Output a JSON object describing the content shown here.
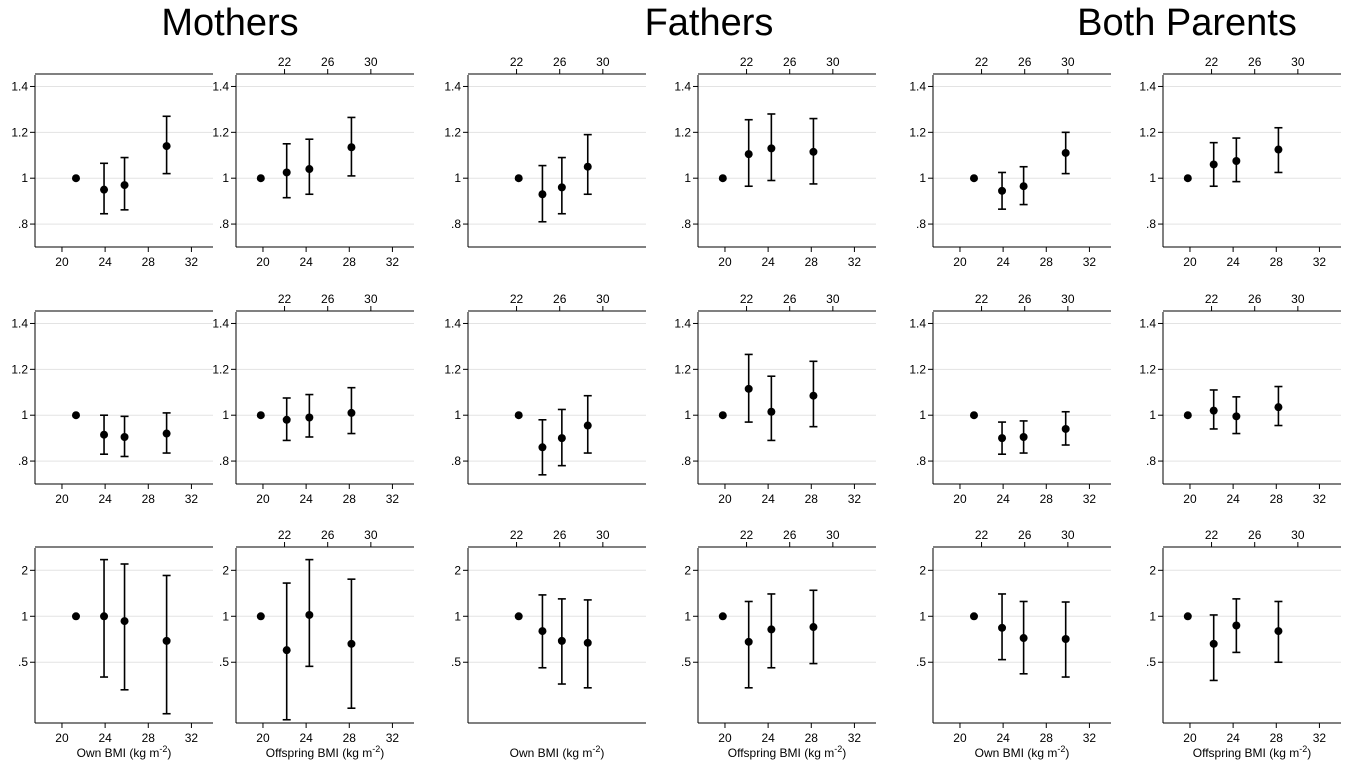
{
  "titles": [
    "Mothers",
    "Fathers",
    "Both Parents"
  ],
  "chart_data": {
    "type": "scatter",
    "description_grid": "3 groups (columns pairs) x 2 panels (own / offspring) x 3 rows; points with 95% CI error bars",
    "groups": [
      {
        "title": "Mothers",
        "panels": [
          {
            "xlabel": "Own BMI (kg m-2)",
            "bottom_ticks": [
              "20",
              "24",
              "28",
              "32"
            ],
            "top_ticks": [],
            "rows": [
              {
                "points": [
                  {
                    "x": 21.3,
                    "y": 1.0,
                    "lo": 1.0,
                    "hi": 1.0
                  },
                  {
                    "x": 23.9,
                    "y": 0.95,
                    "lo": 0.845,
                    "hi": 1.065
                  },
                  {
                    "x": 25.8,
                    "y": 0.97,
                    "lo": 0.862,
                    "hi": 1.09
                  },
                  {
                    "x": 29.7,
                    "y": 1.14,
                    "lo": 1.02,
                    "hi": 1.27
                  }
                ]
              },
              {
                "points": [
                  {
                    "x": 21.3,
                    "y": 1.0,
                    "lo": 1.0,
                    "hi": 1.0
                  },
                  {
                    "x": 23.9,
                    "y": 0.915,
                    "lo": 0.83,
                    "hi": 1.0
                  },
                  {
                    "x": 25.8,
                    "y": 0.905,
                    "lo": 0.82,
                    "hi": 0.995
                  },
                  {
                    "x": 29.7,
                    "y": 0.92,
                    "lo": 0.835,
                    "hi": 1.01
                  }
                ]
              },
              {
                "points": [
                  {
                    "x": 21.3,
                    "y": 1.0,
                    "lo": 1.0,
                    "hi": 1.0
                  },
                  {
                    "x": 23.9,
                    "y": 1.0,
                    "lo": 0.4,
                    "hi": 2.35
                  },
                  {
                    "x": 25.8,
                    "y": 0.93,
                    "lo": 0.33,
                    "hi": 2.2
                  },
                  {
                    "x": 29.7,
                    "y": 0.69,
                    "lo": 0.23,
                    "hi": 1.85
                  }
                ]
              }
            ]
          },
          {
            "xlabel": "Offspring BMI (kg m-2)",
            "bottom_ticks": [
              "20",
              "24",
              "28",
              "32"
            ],
            "top_ticks": [
              "22",
              "26",
              "30"
            ],
            "rows": [
              {
                "points": [
                  {
                    "x": 19.8,
                    "y": 1.0,
                    "lo": 1.0,
                    "hi": 1.0
                  },
                  {
                    "x": 22.2,
                    "y": 1.025,
                    "lo": 0.915,
                    "hi": 1.15
                  },
                  {
                    "x": 24.3,
                    "y": 1.04,
                    "lo": 0.93,
                    "hi": 1.17
                  },
                  {
                    "x": 28.2,
                    "y": 1.135,
                    "lo": 1.01,
                    "hi": 1.265
                  }
                ]
              },
              {
                "points": [
                  {
                    "x": 19.8,
                    "y": 1.0,
                    "lo": 1.0,
                    "hi": 1.0
                  },
                  {
                    "x": 22.2,
                    "y": 0.98,
                    "lo": 0.89,
                    "hi": 1.075
                  },
                  {
                    "x": 24.3,
                    "y": 0.99,
                    "lo": 0.905,
                    "hi": 1.09
                  },
                  {
                    "x": 28.2,
                    "y": 1.01,
                    "lo": 0.92,
                    "hi": 1.12
                  }
                ]
              },
              {
                "points": [
                  {
                    "x": 19.8,
                    "y": 1.0,
                    "lo": 1.0,
                    "hi": 1.0
                  },
                  {
                    "x": 22.2,
                    "y": 0.6,
                    "lo": 0.21,
                    "hi": 1.65
                  },
                  {
                    "x": 24.3,
                    "y": 1.02,
                    "lo": 0.47,
                    "hi": 2.35
                  },
                  {
                    "x": 28.2,
                    "y": 0.66,
                    "lo": 0.25,
                    "hi": 1.75
                  }
                ]
              }
            ]
          }
        ]
      },
      {
        "title": "Fathers",
        "panels": [
          {
            "xlabel": "Own BMI (kg m-2)",
            "bottom_ticks": [],
            "top_ticks": [
              "22",
              "26",
              "30"
            ],
            "rows": [
              {
                "points": [
                  {
                    "x": 22.2,
                    "y": 1.0,
                    "lo": 1.0,
                    "hi": 1.0
                  },
                  {
                    "x": 24.4,
                    "y": 0.93,
                    "lo": 0.81,
                    "hi": 1.055
                  },
                  {
                    "x": 26.2,
                    "y": 0.96,
                    "lo": 0.845,
                    "hi": 1.09
                  },
                  {
                    "x": 28.6,
                    "y": 1.05,
                    "lo": 0.93,
                    "hi": 1.19
                  }
                ]
              },
              {
                "points": [
                  {
                    "x": 22.2,
                    "y": 1.0,
                    "lo": 1.0,
                    "hi": 1.0
                  },
                  {
                    "x": 24.4,
                    "y": 0.86,
                    "lo": 0.74,
                    "hi": 0.98
                  },
                  {
                    "x": 26.2,
                    "y": 0.9,
                    "lo": 0.78,
                    "hi": 1.025
                  },
                  {
                    "x": 28.6,
                    "y": 0.955,
                    "lo": 0.835,
                    "hi": 1.085
                  }
                ]
              },
              {
                "points": [
                  {
                    "x": 22.2,
                    "y": 1.0,
                    "lo": 1.0,
                    "hi": 1.0
                  },
                  {
                    "x": 24.4,
                    "y": 0.8,
                    "lo": 0.46,
                    "hi": 1.38
                  },
                  {
                    "x": 26.2,
                    "y": 0.69,
                    "lo": 0.36,
                    "hi": 1.3
                  },
                  {
                    "x": 28.6,
                    "y": 0.67,
                    "lo": 0.34,
                    "hi": 1.28
                  }
                ]
              }
            ]
          },
          {
            "xlabel": "Offspring BMI (kg m-2)",
            "bottom_ticks": [
              "20",
              "24",
              "28",
              "32"
            ],
            "top_ticks": [
              "22",
              "26",
              "30"
            ],
            "rows": [
              {
                "points": [
                  {
                    "x": 19.8,
                    "y": 1.0,
                    "lo": 1.0,
                    "hi": 1.0
                  },
                  {
                    "x": 22.2,
                    "y": 1.105,
                    "lo": 0.965,
                    "hi": 1.255
                  },
                  {
                    "x": 24.3,
                    "y": 1.13,
                    "lo": 0.99,
                    "hi": 1.28
                  },
                  {
                    "x": 28.2,
                    "y": 1.115,
                    "lo": 0.975,
                    "hi": 1.26
                  }
                ]
              },
              {
                "points": [
                  {
                    "x": 19.8,
                    "y": 1.0,
                    "lo": 1.0,
                    "hi": 1.0
                  },
                  {
                    "x": 22.2,
                    "y": 1.115,
                    "lo": 0.97,
                    "hi": 1.265
                  },
                  {
                    "x": 24.3,
                    "y": 1.015,
                    "lo": 0.89,
                    "hi": 1.17
                  },
                  {
                    "x": 28.2,
                    "y": 1.085,
                    "lo": 0.95,
                    "hi": 1.235
                  }
                ]
              },
              {
                "points": [
                  {
                    "x": 19.8,
                    "y": 1.0,
                    "lo": 1.0,
                    "hi": 1.0
                  },
                  {
                    "x": 22.2,
                    "y": 0.68,
                    "lo": 0.34,
                    "hi": 1.25
                  },
                  {
                    "x": 24.3,
                    "y": 0.82,
                    "lo": 0.46,
                    "hi": 1.4
                  },
                  {
                    "x": 28.2,
                    "y": 0.85,
                    "lo": 0.49,
                    "hi": 1.48
                  }
                ]
              }
            ]
          }
        ]
      },
      {
        "title": "Both Parents",
        "panels": [
          {
            "xlabel": "Own BMI (kg m-2)",
            "bottom_ticks": [
              "20",
              "24",
              "28",
              "32"
            ],
            "top_ticks": [
              "22",
              "26",
              "30"
            ],
            "rows": [
              {
                "points": [
                  {
                    "x": 21.3,
                    "y": 1.0,
                    "lo": 1.0,
                    "hi": 1.0
                  },
                  {
                    "x": 23.9,
                    "y": 0.945,
                    "lo": 0.865,
                    "hi": 1.025
                  },
                  {
                    "x": 25.9,
                    "y": 0.965,
                    "lo": 0.885,
                    "hi": 1.05
                  },
                  {
                    "x": 29.8,
                    "y": 1.11,
                    "lo": 1.02,
                    "hi": 1.2
                  }
                ]
              },
              {
                "points": [
                  {
                    "x": 21.3,
                    "y": 1.0,
                    "lo": 1.0,
                    "hi": 1.0
                  },
                  {
                    "x": 23.9,
                    "y": 0.9,
                    "lo": 0.83,
                    "hi": 0.97
                  },
                  {
                    "x": 25.9,
                    "y": 0.905,
                    "lo": 0.835,
                    "hi": 0.975
                  },
                  {
                    "x": 29.8,
                    "y": 0.94,
                    "lo": 0.87,
                    "hi": 1.015
                  }
                ]
              },
              {
                "points": [
                  {
                    "x": 21.3,
                    "y": 1.0,
                    "lo": 1.0,
                    "hi": 1.0
                  },
                  {
                    "x": 23.9,
                    "y": 0.84,
                    "lo": 0.52,
                    "hi": 1.4
                  },
                  {
                    "x": 25.9,
                    "y": 0.72,
                    "lo": 0.42,
                    "hi": 1.25
                  },
                  {
                    "x": 29.8,
                    "y": 0.71,
                    "lo": 0.4,
                    "hi": 1.24
                  }
                ]
              }
            ]
          },
          {
            "xlabel": "Offspring BMI (kg m-2)",
            "bottom_ticks": [
              "20",
              "24",
              "28",
              "32"
            ],
            "top_ticks": [
              "22",
              "26",
              "30"
            ],
            "rows": [
              {
                "points": [
                  {
                    "x": 19.8,
                    "y": 1.0,
                    "lo": 1.0,
                    "hi": 1.0
                  },
                  {
                    "x": 22.2,
                    "y": 1.06,
                    "lo": 0.965,
                    "hi": 1.155
                  },
                  {
                    "x": 24.3,
                    "y": 1.075,
                    "lo": 0.985,
                    "hi": 1.175
                  },
                  {
                    "x": 28.2,
                    "y": 1.125,
                    "lo": 1.025,
                    "hi": 1.22
                  }
                ]
              },
              {
                "points": [
                  {
                    "x": 19.8,
                    "y": 1.0,
                    "lo": 1.0,
                    "hi": 1.0
                  },
                  {
                    "x": 22.2,
                    "y": 1.02,
                    "lo": 0.94,
                    "hi": 1.11
                  },
                  {
                    "x": 24.3,
                    "y": 0.995,
                    "lo": 0.92,
                    "hi": 1.08
                  },
                  {
                    "x": 28.2,
                    "y": 1.035,
                    "lo": 0.955,
                    "hi": 1.125
                  }
                ]
              },
              {
                "points": [
                  {
                    "x": 19.8,
                    "y": 1.0,
                    "lo": 1.0,
                    "hi": 1.0
                  },
                  {
                    "x": 22.2,
                    "y": 0.66,
                    "lo": 0.38,
                    "hi": 1.02
                  },
                  {
                    "x": 24.3,
                    "y": 0.87,
                    "lo": 0.58,
                    "hi": 1.3
                  },
                  {
                    "x": 28.2,
                    "y": 0.8,
                    "lo": 0.5,
                    "hi": 1.25
                  }
                ]
              }
            ]
          }
        ]
      }
    ],
    "rows_y_axes": [
      {
        "scale": "linear",
        "ylim": [
          0.7,
          1.45
        ],
        "ticks": [
          {
            "v": 0.8,
            "label": ".8"
          },
          {
            "v": 1.0,
            "label": "1"
          },
          {
            "v": 1.2,
            "label": "1.2"
          },
          {
            "v": 1.4,
            "label": "1.4"
          }
        ]
      },
      {
        "scale": "linear",
        "ylim": [
          0.7,
          1.45
        ],
        "ticks": [
          {
            "v": 0.8,
            "label": ".8"
          },
          {
            "v": 1.0,
            "label": "1"
          },
          {
            "v": 1.2,
            "label": "1.2"
          },
          {
            "v": 1.4,
            "label": "1.4"
          }
        ]
      },
      {
        "scale": "log",
        "ylim": [
          0.2,
          2.8
        ],
        "ticks": [
          {
            "v": 0.5,
            "label": ".5"
          },
          {
            "v": 1.0,
            "label": "1"
          },
          {
            "v": 2.0,
            "label": "2"
          }
        ]
      }
    ],
    "x_axis": {
      "xlim": [
        17.5,
        34
      ]
    },
    "grid": true
  }
}
